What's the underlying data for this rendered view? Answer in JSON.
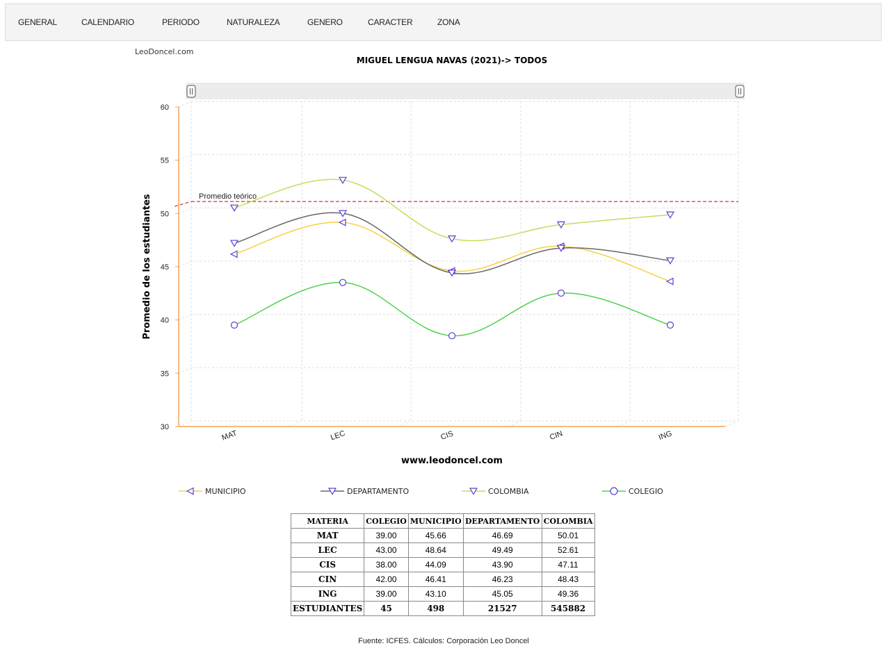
{
  "nav": {
    "items": [
      "GENERAL",
      "CALENDARIO",
      "PERIODO",
      "NATURALEZA",
      "GENERO",
      "CARACTER",
      "ZONA"
    ]
  },
  "brand": "LeoDoncel.com",
  "chart_data": {
    "type": "line",
    "title": "MIGUEL LENGUA NAVAS (2021)-> TODOS",
    "xlabel": "www.leodoncel.com",
    "ylabel": "Promedio de los estudiantes",
    "categories": [
      "MAT",
      "LEC",
      "CIS",
      "CIN",
      "ING"
    ],
    "ylim": [
      30,
      60
    ],
    "yticks": [
      30,
      35,
      40,
      45,
      50,
      55,
      60
    ],
    "grid": true,
    "legend_position": "bottom",
    "reference_line": {
      "label": "Promedio teórico",
      "value": 50.6,
      "color": "#e03030"
    },
    "series": [
      {
        "name": "MUNICIPIO",
        "color": "#f5d142",
        "marker": "triangle-left",
        "values": [
          45.66,
          48.64,
          44.09,
          46.41,
          43.1
        ]
      },
      {
        "name": "DEPARTAMENTO",
        "color": "#666666",
        "marker": "triangle-down",
        "values": [
          46.69,
          49.49,
          43.9,
          46.23,
          45.05
        ]
      },
      {
        "name": "COLOMBIA",
        "color": "#c6dc5a",
        "marker": "triangle-down",
        "values": [
          50.01,
          52.61,
          47.11,
          48.43,
          49.36
        ]
      },
      {
        "name": "COLEGIO",
        "color": "#4cd24c",
        "marker": "circle",
        "values": [
          39.0,
          43.0,
          38.0,
          42.0,
          39.0
        ]
      }
    ]
  },
  "table": {
    "headers": [
      "MATERIA",
      "COLEGIO",
      "MUNICIPIO",
      "DEPARTAMENTO",
      "COLOMBIA"
    ],
    "rows": [
      [
        "MAT",
        "39.00",
        "45.66",
        "46.69",
        "50.01"
      ],
      [
        "LEC",
        "43.00",
        "48.64",
        "49.49",
        "52.61"
      ],
      [
        "CIS",
        "38.00",
        "44.09",
        "43.90",
        "47.11"
      ],
      [
        "CIN",
        "42.00",
        "46.41",
        "46.23",
        "48.43"
      ],
      [
        "ING",
        "39.00",
        "43.10",
        "45.05",
        "49.36"
      ]
    ],
    "total": [
      "ESTUDIANTES",
      "45",
      "498",
      "21527",
      "545882"
    ]
  },
  "source": "Fuente: ICFES. Cálculos: Corporación Leo Doncel",
  "marker_color": "#5a3fd0"
}
